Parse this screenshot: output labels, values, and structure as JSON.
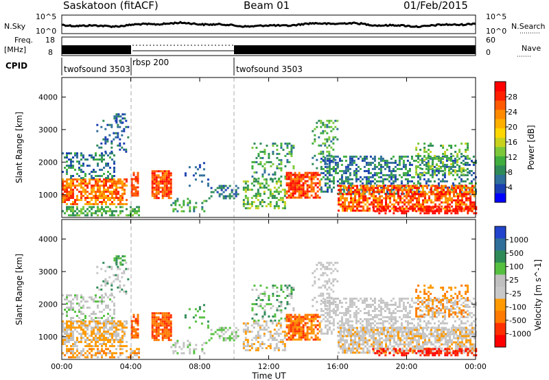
{
  "header": {
    "station": "Saskatoon (fitACF)",
    "beam": "Beam 01",
    "date": "01/Feb/2015"
  },
  "noise_panel": {
    "left_label": "N.Sky",
    "right_label": "N.Search",
    "left_ticks": [
      "10^5",
      "10^0"
    ],
    "right_ticks": [
      "10^5",
      "10^0"
    ]
  },
  "freq_panel": {
    "left_label": "Freq.",
    "left_unit": "[MHz]",
    "right_label": "Nave",
    "left_ticks": [
      "18",
      "8"
    ],
    "right_ticks": [
      "60",
      "0"
    ]
  },
  "cpid": {
    "label": "CPID",
    "segments": [
      {
        "start_hour": 0,
        "name": "twofsound 3503"
      },
      {
        "start_hour": 3.9,
        "name": "rbsp 200"
      },
      {
        "start_hour": 9.9,
        "name": "twofsound 3503"
      }
    ]
  },
  "colors": {
    "power_scale": [
      "#0000ff",
      "#1a3fb0",
      "#2f6f9a",
      "#2e8b57",
      "#3fae3f",
      "#7cc83a",
      "#c8d21e",
      "#ffd700",
      "#ffb000",
      "#ff8a00",
      "#ff5a00",
      "#ff2000",
      "#ff0000"
    ],
    "velocity_scale": [
      "#2244cc",
      "#2f6f9a",
      "#2e8b57",
      "#55c040",
      "#c0c0c0",
      "#c8c8c8",
      "#ff9a00",
      "#ff7a00",
      "#ff3000",
      "#ff0000"
    ]
  },
  "chart_data": [
    {
      "type": "heatmap",
      "title": "Power",
      "xlabel": "",
      "ylabel": "Slant Range [km]",
      "x_range_hours": [
        0,
        24
      ],
      "ylim": [
        300,
        4600
      ],
      "y_ticks": [
        "1000",
        "2000",
        "3000",
        "4000"
      ],
      "colorbar_label": "Power [dB]",
      "colorbar_ticks": [
        "4",
        "8",
        "12",
        "16",
        "20",
        "24",
        "28"
      ]
    },
    {
      "type": "heatmap",
      "title": "Velocity",
      "xlabel": "Time UT",
      "ylabel": "Slant Range [km]",
      "x_range_hours": [
        0,
        24
      ],
      "ylim": [
        300,
        4600
      ],
      "x_ticks": [
        "00:00",
        "04:00",
        "08:00",
        "12:00",
        "16:00",
        "20:00",
        "00:00"
      ],
      "y_ticks": [
        "1000",
        "2000",
        "3000",
        "4000"
      ],
      "colorbar_label": "Velocity [m s^-1]",
      "colorbar_ticks": [
        "1000",
        "500",
        "100",
        "25",
        "-25",
        "-100",
        "-500",
        "-1000"
      ]
    }
  ]
}
